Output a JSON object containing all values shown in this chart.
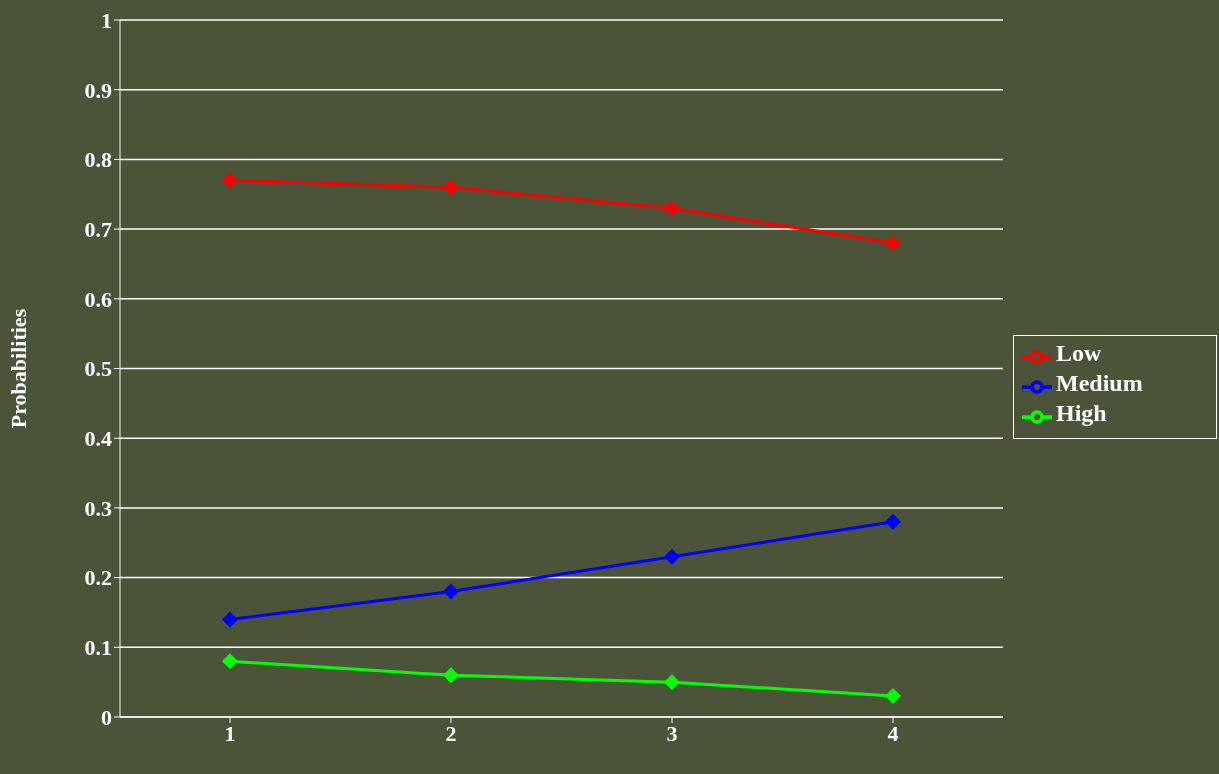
{
  "chart_data": {
    "type": "line",
    "ylabel": "Probabilities",
    "categories": [
      "1",
      "2",
      "3",
      "4"
    ],
    "series": [
      {
        "name": "Low",
        "color": "#ff0000",
        "values": [
          0.77,
          0.76,
          0.73,
          0.68
        ]
      },
      {
        "name": "Medium",
        "color": "#0000ff",
        "values": [
          0.14,
          0.18,
          0.23,
          0.28
        ]
      },
      {
        "name": "High",
        "color": "#00ff00",
        "values": [
          0.08,
          0.06,
          0.05,
          0.03
        ]
      }
    ],
    "ylim": [
      0,
      1
    ],
    "yticks": [
      0,
      0.1,
      0.2,
      0.3,
      0.4,
      0.5,
      0.6,
      0.7,
      0.8,
      0.9,
      1
    ],
    "grid": "y",
    "legend": "right",
    "marker": "diamond",
    "line_style": "solid"
  }
}
